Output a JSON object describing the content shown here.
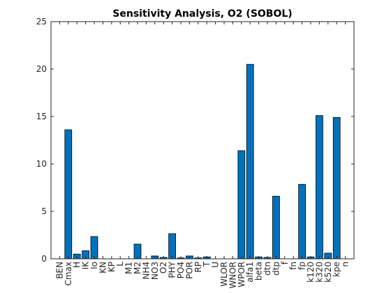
{
  "chart_data": {
    "type": "bar",
    "title": "Sensitivity Analysis, O2 (SOBOL)",
    "xlabel": "",
    "ylabel": "",
    "ylim": [
      0,
      25
    ],
    "yticks": [
      0,
      5,
      10,
      15,
      20,
      25
    ],
    "grid": false,
    "bar_color": "#0072bd",
    "categories": [
      "BEN",
      "Cmax",
      "H",
      "IK",
      "Io",
      "KN",
      "KP",
      "L",
      "M1",
      "M2",
      "NH4",
      "NO3",
      "O2",
      "PHY",
      "PO4",
      "POR",
      "RP",
      "T",
      "U",
      "WLOR",
      "WNOR",
      "WPOR",
      "alfa1",
      "beta",
      "dtn",
      "dtp",
      "f",
      "fn",
      "fp",
      "k120",
      "k320",
      "k520",
      "kpe",
      "n"
    ],
    "values": [
      0,
      13.6,
      0.5,
      0.85,
      2.35,
      0,
      0,
      0,
      0,
      1.55,
      0,
      0.3,
      0.15,
      2.65,
      0.1,
      0.3,
      0.1,
      0.2,
      0,
      0,
      0,
      11.4,
      20.5,
      0.2,
      0.15,
      6.6,
      0,
      0,
      7.85,
      0.2,
      15.1,
      0.6,
      14.9,
      0
    ]
  }
}
